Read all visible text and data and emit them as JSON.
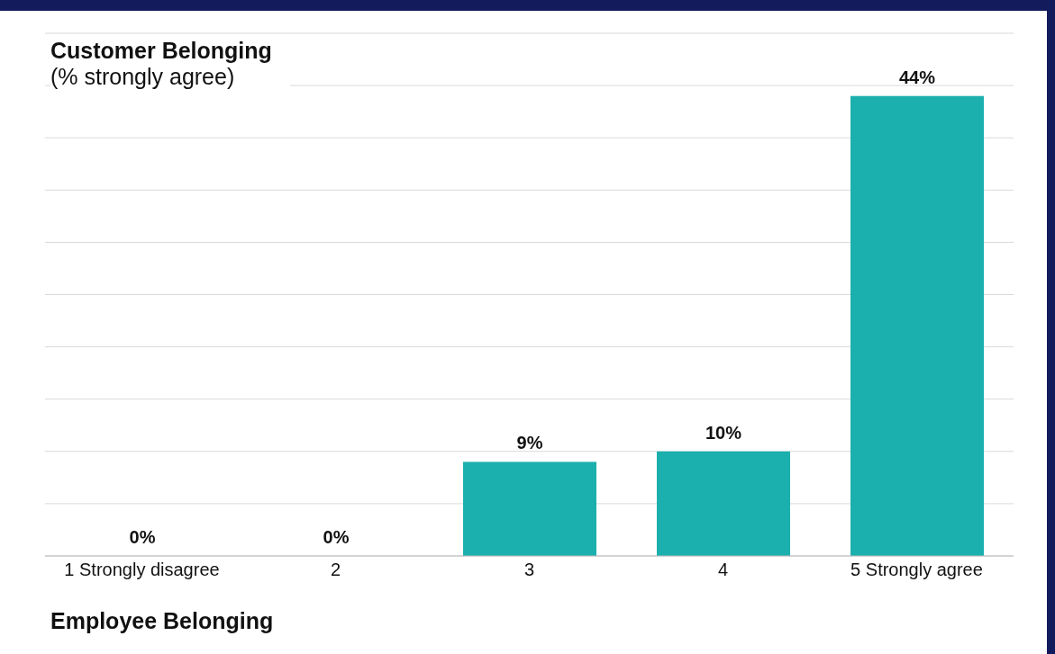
{
  "chart_data": {
    "type": "bar",
    "title": "Customer Belonging",
    "subtitle": "(% strongly agree)",
    "xlabel": "Employee Belonging",
    "categories": [
      "1 Strongly disagree",
      "2",
      "3",
      "4",
      "5 Strongly agree"
    ],
    "values": [
      0,
      0,
      9,
      10,
      44
    ],
    "value_labels": [
      "0%",
      "0%",
      "9%",
      "10%",
      "44%"
    ],
    "color": "#1bb0ae",
    "ylim": [
      0,
      50
    ],
    "yticks": [
      {
        "value": 0,
        "label": null
      },
      {
        "value": 5,
        "label": null
      },
      {
        "value": 10,
        "label": null
      },
      {
        "value": 15,
        "label": null
      },
      {
        "value": 20,
        "label": null
      },
      {
        "value": 25,
        "label": null
      },
      {
        "value": 30,
        "label": null
      },
      {
        "value": 35,
        "label": null
      },
      {
        "value": 40,
        "label": null
      },
      {
        "value": 45,
        "label": null
      },
      {
        "value": 50,
        "label": null
      }
    ],
    "grid": "y",
    "tick_labels": "x"
  }
}
